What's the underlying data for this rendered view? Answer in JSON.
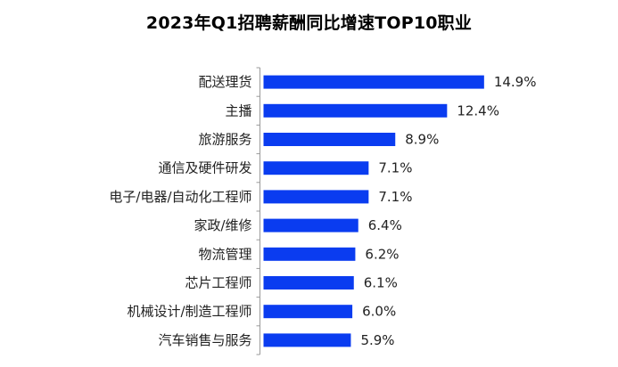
{
  "chart_data": {
    "type": "bar",
    "orientation": "horizontal",
    "title": "2023年Q1招聘薪酬同比增速TOP10职业",
    "xlabel": "",
    "ylabel": "",
    "grid": false,
    "legend": "none",
    "bar_color": "#0a3cf0",
    "xlim": [
      0,
      16
    ],
    "categories": [
      "配送理货",
      "主播",
      "旅游服务",
      "通信及硬件研发",
      "电子/电器/自动化工程师",
      "家政/维修",
      "物流管理",
      "芯片工程师",
      "机械设计/制造工程师",
      "汽车销售与服务"
    ],
    "values": [
      14.9,
      12.4,
      8.9,
      7.1,
      7.1,
      6.4,
      6.2,
      6.1,
      6.0,
      5.9
    ],
    "labels": [
      "14.9%",
      "12.4%",
      "8.9%",
      "7.1%",
      "7.1%",
      "6.4%",
      "6.2%",
      "6.1%",
      "6.0%",
      "5.9%"
    ]
  }
}
